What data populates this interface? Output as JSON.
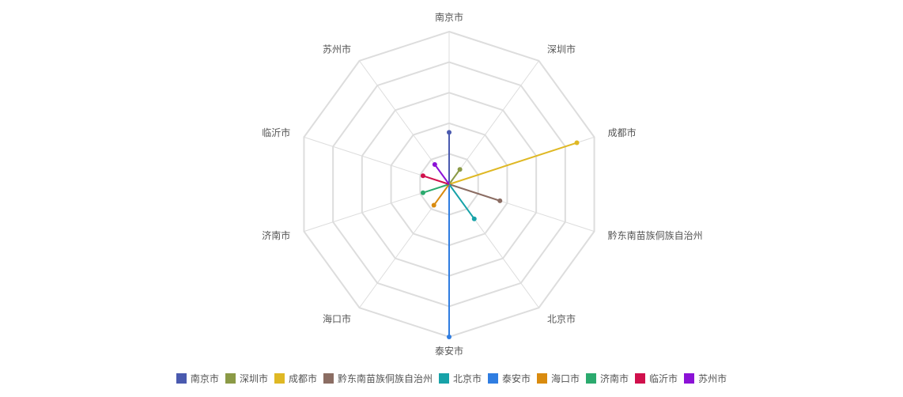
{
  "chart_data": {
    "type": "radar",
    "indicators": [
      "南京市",
      "深圳市",
      "成都市",
      "黔东南苗族侗族自治州",
      "北京市",
      "泰安市",
      "海口市",
      "济南市",
      "临沂市",
      "苏州市"
    ],
    "max": 100,
    "split_number": 5,
    "series": [
      {
        "name": "南京市",
        "color": "#4a5aaf",
        "axis": 0,
        "value": 34
      },
      {
        "name": "深圳市",
        "color": "#8b9a46",
        "axis": 1,
        "value": 12
      },
      {
        "name": "成都市",
        "color": "#dfb824",
        "axis": 2,
        "value": 88
      },
      {
        "name": "黔东南苗族侗族自治州",
        "color": "#8b6d63",
        "axis": 3,
        "value": 35
      },
      {
        "name": "北京市",
        "color": "#17a2a8",
        "axis": 4,
        "value": 28
      },
      {
        "name": "泰安市",
        "color": "#2f7de1",
        "axis": 5,
        "value": 100
      },
      {
        "name": "海口市",
        "color": "#d98b0f",
        "axis": 6,
        "value": 17
      },
      {
        "name": "济南市",
        "color": "#2baa6e",
        "axis": 7,
        "value": 18
      },
      {
        "name": "临沂市",
        "color": "#d0104c",
        "axis": 8,
        "value": 18
      },
      {
        "name": "苏州市",
        "color": "#8b12d6",
        "axis": 9,
        "value": 16
      }
    ],
    "legend_position": "bottom",
    "grid_color": "#dddddd"
  }
}
